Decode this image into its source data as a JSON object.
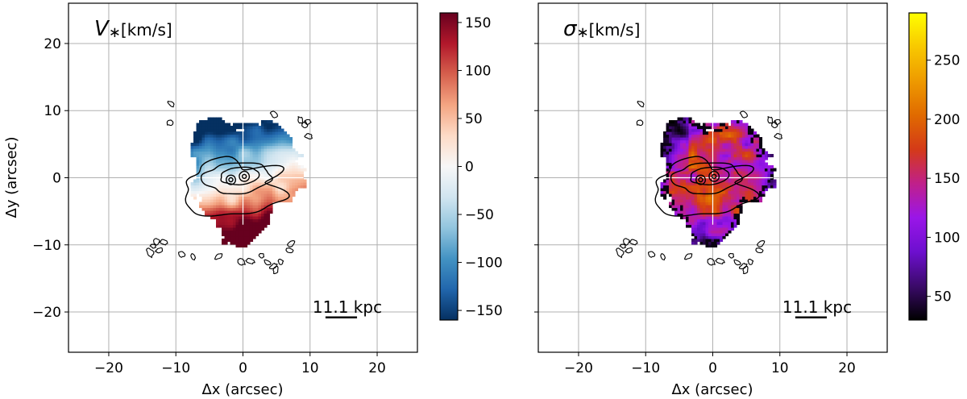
{
  "chart_data": [
    {
      "type": "heatmap",
      "panel": "left",
      "title_symbol": "V",
      "title_sub": "∗",
      "title_unit": "[km/s]",
      "xlabel": "Δx (arcsec)",
      "ylabel": "Δy (arcsec)",
      "xlim": [
        -26,
        26
      ],
      "ylim": [
        -26,
        26
      ],
      "xticks": [
        -20,
        -10,
        0,
        10,
        20
      ],
      "yticks": [
        -20,
        -10,
        0,
        10,
        20
      ],
      "xtick_labels": [
        "−20",
        "−10",
        "0",
        "10",
        "20"
      ],
      "ytick_labels": [
        "−20",
        "−10",
        "0",
        "10",
        "20"
      ],
      "grid": true,
      "scalebar_label": "11.1 kpc",
      "scalebar_x": [
        12.3,
        17.0
      ],
      "scalebar_y": -20.8,
      "colormap": "RdBu_r",
      "colorbar_range": [
        -160,
        160
      ],
      "colorbar_ticks": [
        150,
        100,
        50,
        0,
        -50,
        -100,
        -150
      ],
      "colorbar_tick_labels": [
        "150",
        "100",
        "50",
        "0",
        "−50",
        "−100",
        "−150"
      ]
    },
    {
      "type": "heatmap",
      "panel": "right",
      "title_symbol": "σ",
      "title_sub": "∗",
      "title_unit": "[km/s]",
      "xlabel": "Δx (arcsec)",
      "ylabel": "",
      "xlim": [
        -26,
        26
      ],
      "ylim": [
        -26,
        26
      ],
      "xticks": [
        -20,
        -10,
        0,
        10,
        20
      ],
      "yticks": [
        -20,
        -10,
        0,
        10,
        20
      ],
      "xtick_labels": [
        "−20",
        "−10",
        "0",
        "10",
        "20"
      ],
      "grid": true,
      "scalebar_label": "11.1 kpc",
      "scalebar_x": [
        12.3,
        17.0
      ],
      "scalebar_y": -20.8,
      "colormap": "gnuplot",
      "colorbar_range": [
        30,
        290
      ],
      "colorbar_ticks": [
        250,
        200,
        150,
        100,
        50
      ],
      "colorbar_tick_labels": [
        "250",
        "200",
        "150",
        "100",
        "50"
      ]
    }
  ],
  "colors": {
    "rdbu": [
      "#053061",
      "#2166ac",
      "#4393c3",
      "#92c5de",
      "#d1e5f0",
      "#f7f7f7",
      "#fddbc7",
      "#f4a582",
      "#d6604d",
      "#b2182b",
      "#67001f"
    ],
    "gnuplot": [
      "#000000",
      "#3b0a6a",
      "#6d0fcf",
      "#9a16e8",
      "#c0208a",
      "#d43a18",
      "#e06a00",
      "#ee9a00",
      "#f8c800",
      "#ffff00"
    ]
  }
}
